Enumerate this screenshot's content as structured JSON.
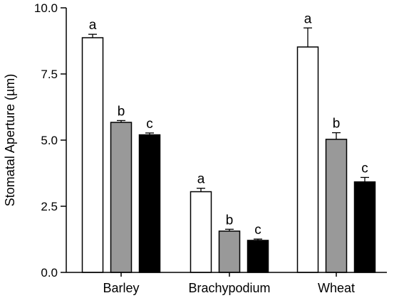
{
  "chart_data": {
    "type": "bar",
    "title": "",
    "xlabel": "",
    "ylabel": "Stomatal Aperture (µm)",
    "ylim": [
      0,
      10
    ],
    "yticks": [
      "0.0",
      "2.5",
      "5.0",
      "7.5",
      "10.0"
    ],
    "ytick_values": [
      0,
      2.5,
      5,
      7.5,
      10
    ],
    "grid": false,
    "legend": "none",
    "categories": [
      "Barley",
      "Brachypodium",
      "Wheat"
    ],
    "series": [
      {
        "color": "#ffffff",
        "values": [
          8.87,
          3.05,
          8.52
        ],
        "errors": [
          0.13,
          0.13,
          0.72
        ],
        "sig": [
          "a",
          "a",
          "a"
        ]
      },
      {
        "color": "#999999",
        "values": [
          5.67,
          1.56,
          5.03
        ],
        "errors": [
          0.07,
          0.07,
          0.25
        ],
        "sig": [
          "b",
          "b",
          "b"
        ]
      },
      {
        "color": "#000000",
        "values": [
          5.2,
          1.21,
          3.42
        ],
        "errors": [
          0.07,
          0.05,
          0.17
        ],
        "sig": [
          "c",
          "c",
          "c"
        ]
      }
    ]
  }
}
